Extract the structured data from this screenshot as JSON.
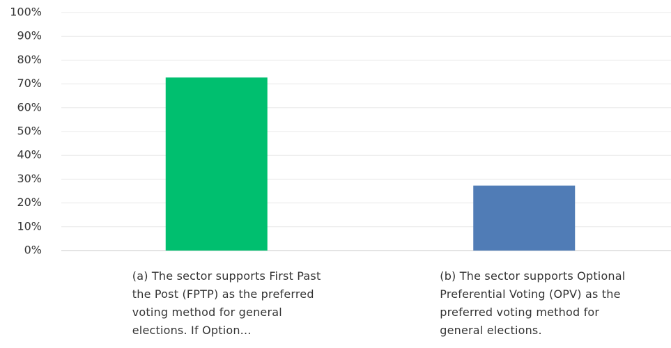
{
  "chart_data": {
    "type": "bar",
    "categories": [
      "(a) The sector supports First Past the Post (FPTP) as the preferred voting method for general elections. If Option...",
      "(b) The sector supports Optional Preferential Voting (OPV) as the preferred voting method for general elections."
    ],
    "values": [
      72.7,
      27.3
    ],
    "colors": [
      "#00bf6f",
      "#507cb6"
    ],
    "ylim": [
      0,
      100
    ],
    "yticks": [
      {
        "value": 0,
        "label": "0%"
      },
      {
        "value": 10,
        "label": "10%"
      },
      {
        "value": 20,
        "label": "20%"
      },
      {
        "value": 30,
        "label": "30%"
      },
      {
        "value": 40,
        "label": "40%"
      },
      {
        "value": 50,
        "label": "50%"
      },
      {
        "value": 60,
        "label": "60%"
      },
      {
        "value": 70,
        "label": "70%"
      },
      {
        "value": 80,
        "label": "80%"
      },
      {
        "value": 90,
        "label": "90%"
      },
      {
        "value": 100,
        "label": "100%"
      }
    ],
    "grid": true
  }
}
